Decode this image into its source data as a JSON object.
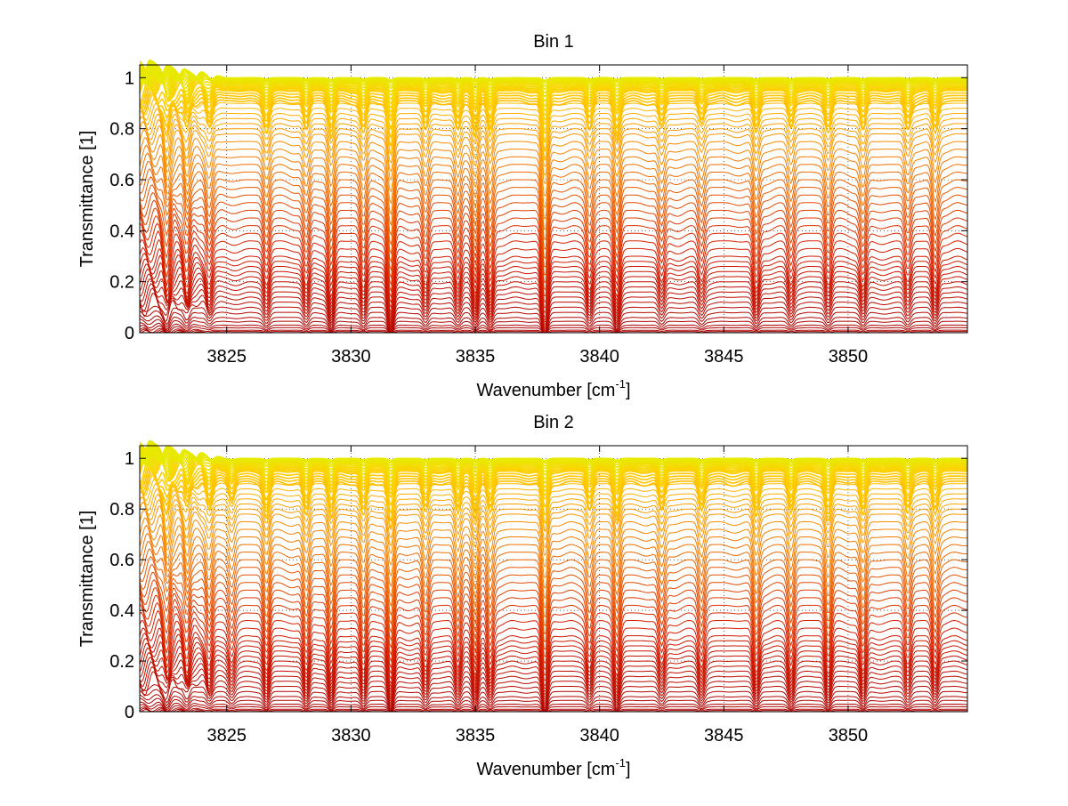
{
  "figure": {
    "background": "#ffffff",
    "grid": "dotted",
    "colormap": "autumn (red to yellow)",
    "trace_colors": [
      "#c80000",
      "#ff6a00",
      "#ffd000",
      "#e8f000",
      "#00c8e6"
    ]
  },
  "chart_data": [
    {
      "type": "line",
      "title": "Bin 1",
      "xlabel": "Wavenumber [cm",
      "xlabel_sup": "-1",
      "xlabel_end": "]",
      "ylabel": "Transmittance [1]",
      "xlim": [
        3821.5,
        3854.8
      ],
      "ylim": [
        0,
        1.05
      ],
      "xticks": [
        3825,
        3830,
        3835,
        3840,
        3845,
        3850
      ],
      "xtick_labels": [
        "3825",
        "3830",
        "3835",
        "3840",
        "3845",
        "3850"
      ],
      "yticks": [
        0,
        0.2,
        0.4,
        0.6,
        0.8,
        1
      ],
      "ytick_labels": [
        "0",
        "0.2",
        "0.4",
        "0.6",
        "0.8",
        "1"
      ],
      "grid": true,
      "n_traces": 60,
      "trace_baselines": [
        0.0,
        0.005,
        0.01,
        0.02,
        0.03,
        0.045,
        0.06,
        0.08,
        0.1,
        0.12,
        0.14,
        0.16,
        0.18,
        0.2,
        0.22,
        0.24,
        0.26,
        0.28,
        0.3,
        0.33,
        0.36,
        0.39,
        0.42,
        0.45,
        0.48,
        0.51,
        0.54,
        0.57,
        0.6,
        0.63,
        0.66,
        0.69,
        0.72,
        0.75,
        0.78,
        0.8,
        0.82,
        0.84,
        0.86,
        0.88,
        0.9,
        0.91,
        0.92,
        0.93,
        0.94,
        0.95,
        0.955,
        0.96,
        0.965,
        0.97,
        0.975,
        0.98,
        0.984,
        0.988,
        0.991,
        0.994,
        0.996,
        0.998,
        0.999,
        1.0
      ],
      "absorption_lines": [
        {
          "x": 3822.6,
          "depth": 0.6
        },
        {
          "x": 3823.4,
          "depth": 0.5
        },
        {
          "x": 3824.3,
          "depth": 0.4
        },
        {
          "x": 3826.6,
          "depth": 0.45
        },
        {
          "x": 3828.2,
          "depth": 0.45
        },
        {
          "x": 3829.2,
          "depth": 0.6
        },
        {
          "x": 3830.5,
          "depth": 0.5
        },
        {
          "x": 3831.6,
          "depth": 0.85
        },
        {
          "x": 3833.0,
          "depth": 0.45
        },
        {
          "x": 3834.3,
          "depth": 0.45
        },
        {
          "x": 3835.0,
          "depth": 0.55
        },
        {
          "x": 3835.6,
          "depth": 0.55
        },
        {
          "x": 3837.8,
          "depth": 0.97
        },
        {
          "x": 3839.6,
          "depth": 0.45
        },
        {
          "x": 3840.7,
          "depth": 0.6
        },
        {
          "x": 3842.5,
          "depth": 0.4
        },
        {
          "x": 3844.1,
          "depth": 0.35
        },
        {
          "x": 3846.3,
          "depth": 0.5
        },
        {
          "x": 3847.7,
          "depth": 0.4
        },
        {
          "x": 3849.2,
          "depth": 0.45
        },
        {
          "x": 3850.6,
          "depth": 0.45
        },
        {
          "x": 3852.4,
          "depth": 0.4
        },
        {
          "x": 3853.5,
          "depth": 0.5
        }
      ]
    },
    {
      "type": "line",
      "title": "Bin 2",
      "xlabel": "Wavenumber [cm",
      "xlabel_sup": "-1",
      "xlabel_end": "]",
      "ylabel": "Transmittance [1]",
      "xlim": [
        3821.5,
        3854.8
      ],
      "ylim": [
        0,
        1.05
      ],
      "xticks": [
        3825,
        3830,
        3835,
        3840,
        3845,
        3850
      ],
      "xtick_labels": [
        "3825",
        "3830",
        "3835",
        "3840",
        "3845",
        "3850"
      ],
      "yticks": [
        0,
        0.2,
        0.4,
        0.6,
        0.8,
        1
      ],
      "ytick_labels": [
        "0",
        "0.2",
        "0.4",
        "0.6",
        "0.8",
        "1"
      ],
      "grid": true,
      "n_traces": 60,
      "trace_baselines": [
        0.0,
        0.005,
        0.01,
        0.02,
        0.03,
        0.045,
        0.06,
        0.08,
        0.1,
        0.12,
        0.14,
        0.16,
        0.18,
        0.2,
        0.22,
        0.24,
        0.26,
        0.28,
        0.3,
        0.33,
        0.36,
        0.39,
        0.42,
        0.45,
        0.48,
        0.51,
        0.54,
        0.57,
        0.6,
        0.63,
        0.66,
        0.69,
        0.72,
        0.75,
        0.78,
        0.8,
        0.82,
        0.84,
        0.86,
        0.88,
        0.9,
        0.91,
        0.92,
        0.93,
        0.94,
        0.95,
        0.955,
        0.96,
        0.965,
        0.97,
        0.975,
        0.98,
        0.984,
        0.988,
        0.991,
        0.994,
        0.996,
        0.998,
        0.999,
        1.0
      ],
      "absorption_lines": [
        {
          "x": 3822.6,
          "depth": 0.55
        },
        {
          "x": 3823.4,
          "depth": 0.5
        },
        {
          "x": 3824.3,
          "depth": 0.45
        },
        {
          "x": 3825.2,
          "depth": 0.35
        },
        {
          "x": 3826.6,
          "depth": 0.55
        },
        {
          "x": 3828.2,
          "depth": 0.55
        },
        {
          "x": 3829.2,
          "depth": 0.6
        },
        {
          "x": 3830.5,
          "depth": 0.55
        },
        {
          "x": 3831.6,
          "depth": 0.75
        },
        {
          "x": 3833.0,
          "depth": 0.5
        },
        {
          "x": 3834.3,
          "depth": 0.5
        },
        {
          "x": 3835.0,
          "depth": 0.6
        },
        {
          "x": 3835.6,
          "depth": 0.5
        },
        {
          "x": 3837.8,
          "depth": 0.8
        },
        {
          "x": 3839.6,
          "depth": 0.45
        },
        {
          "x": 3840.7,
          "depth": 0.6
        },
        {
          "x": 3842.5,
          "depth": 0.45
        },
        {
          "x": 3844.1,
          "depth": 0.45
        },
        {
          "x": 3846.3,
          "depth": 0.55
        },
        {
          "x": 3847.7,
          "depth": 0.5
        },
        {
          "x": 3849.2,
          "depth": 0.6
        },
        {
          "x": 3850.6,
          "depth": 0.55
        },
        {
          "x": 3852.4,
          "depth": 0.45
        },
        {
          "x": 3853.5,
          "depth": 0.5
        }
      ]
    }
  ]
}
